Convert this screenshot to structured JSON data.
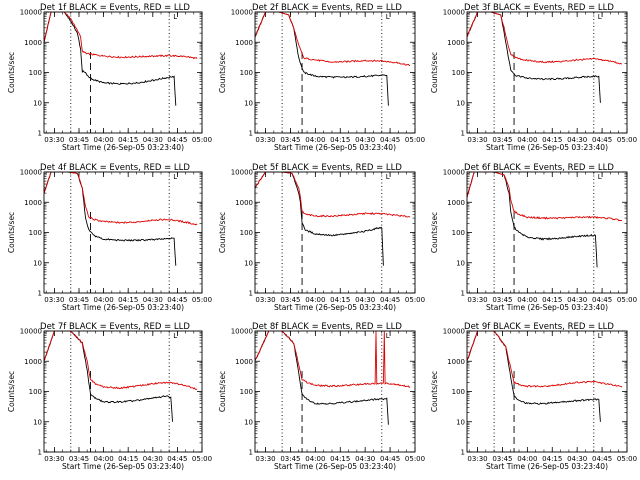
{
  "chart_data": [
    {
      "type": "line",
      "title": "Det 1f BLACK = Events, RED = LLD",
      "ylabel": "Counts/sec",
      "xlabel": "Start Time (26-Sep-05 03:23:40)",
      "yscale": "log",
      "ylim": [
        1,
        10000
      ],
      "xlim": [
        "03:23:40",
        "05:00:00"
      ],
      "x_ticks": [
        "03:30",
        "03:45",
        "04:00",
        "04:15",
        "04:30",
        "04:45",
        "05:00"
      ],
      "y_ticks": [
        "1",
        "10",
        "100",
        "1000",
        "10000"
      ],
      "marker_label": "L",
      "vlines": {
        "dotted": [
          "03:40",
          "04:40"
        ],
        "dashed": [
          "03:52"
        ]
      },
      "series": [
        {
          "color": "#000000",
          "x": [
            "03:23:40",
            "03:28:00",
            "03:36:00",
            "03:40:00",
            "03:44:00",
            "03:46:00",
            "03:47:00",
            "03:49:00",
            "03:50:00",
            "03:53:00",
            "04:00:00",
            "04:10:00",
            "04:20:00",
            "04:30:00",
            "04:40:00",
            "04:43:00",
            "04:44:00"
          ],
          "values": [
            1000,
            10000,
            10000,
            5000,
            2000,
            600,
            110,
            100,
            80,
            60,
            45,
            42,
            45,
            55,
            70,
            75,
            8
          ]
        },
        {
          "color": "#dd0000",
          "x": [
            "03:23:40",
            "03:28:00",
            "03:36:00",
            "03:40:00",
            "03:44:00",
            "03:46:00",
            "03:47:00",
            "03:50:00",
            "04:00:00",
            "04:10:00",
            "04:20:00",
            "04:30:00",
            "04:40:00",
            "04:50:00",
            "04:57:00"
          ],
          "values": [
            1000,
            10000,
            10000,
            6000,
            2500,
            1500,
            500,
            420,
            350,
            320,
            330,
            350,
            360,
            340,
            290
          ]
        }
      ]
    },
    {
      "type": "line",
      "title": "Det 2f BLACK = Events, RED = LLD",
      "ylabel": "Counts/sec",
      "xlabel": "Start Time (26-Sep-05 03:23:40)",
      "yscale": "log",
      "ylim": [
        1,
        10000
      ],
      "xlim": [
        "03:23:40",
        "05:00:00"
      ],
      "x_ticks": [
        "03:30",
        "03:45",
        "04:00",
        "04:15",
        "04:30",
        "04:45",
        "05:00"
      ],
      "y_ticks": [
        "1",
        "10",
        "100",
        "1000",
        "10000"
      ],
      "marker_label": "L",
      "vlines": {
        "dotted": [
          "03:40",
          "04:40"
        ],
        "dashed": [
          "03:52"
        ]
      },
      "series": [
        {
          "color": "#000000",
          "x": [
            "03:23:40",
            "03:30:00",
            "03:38:00",
            "03:44:00",
            "03:47:00",
            "03:50:00",
            "03:53:00",
            "04:00:00",
            "04:10:00",
            "04:20:00",
            "04:30:00",
            "04:40:00",
            "04:43:00",
            "04:44:00"
          ],
          "values": [
            1500,
            10000,
            10000,
            8000,
            3000,
            300,
            100,
            75,
            70,
            70,
            75,
            80,
            80,
            8
          ]
        },
        {
          "color": "#dd0000",
          "x": [
            "03:23:40",
            "03:30:00",
            "03:38:00",
            "03:44:00",
            "03:47:00",
            "03:50:00",
            "03:53:00",
            "04:00:00",
            "04:10:00",
            "04:20:00",
            "04:30:00",
            "04:40:00",
            "04:50:00",
            "04:57:00"
          ],
          "values": [
            1500,
            10000,
            10000,
            8000,
            3000,
            800,
            300,
            260,
            220,
            230,
            250,
            240,
            210,
            170
          ]
        }
      ]
    },
    {
      "type": "line",
      "title": "Det 3f BLACK = Events, RED = LLD",
      "ylabel": "Counts/sec",
      "xlabel": "Start Time (26-Sep-05 03:23:40)",
      "yscale": "log",
      "ylim": [
        1,
        10000
      ],
      "xlim": [
        "03:23:40",
        "05:00:00"
      ],
      "x_ticks": [
        "03:30",
        "03:45",
        "04:00",
        "04:15",
        "04:30",
        "04:45",
        "05:00"
      ],
      "y_ticks": [
        "1",
        "10",
        "100",
        "1000",
        "10000"
      ],
      "marker_label": "L",
      "vlines": {
        "dotted": [
          "03:40",
          "04:40"
        ],
        "dashed": [
          "03:52"
        ]
      },
      "series": [
        {
          "color": "#000000",
          "x": [
            "03:23:40",
            "03:30:00",
            "03:38:00",
            "03:44:00",
            "03:46:00",
            "03:48:00",
            "03:50:00",
            "03:53:00",
            "04:00:00",
            "04:10:00",
            "04:20:00",
            "04:30:00",
            "04:40:00",
            "04:43:00",
            "04:44:00"
          ],
          "values": [
            1500,
            10000,
            10000,
            8000,
            2000,
            500,
            120,
            80,
            65,
            60,
            62,
            68,
            75,
            75,
            10
          ]
        },
        {
          "color": "#dd0000",
          "x": [
            "03:23:40",
            "03:30:00",
            "03:38:00",
            "03:44:00",
            "03:46:00",
            "03:48:00",
            "03:50:00",
            "03:53:00",
            "04:00:00",
            "04:10:00",
            "04:20:00",
            "04:30:00",
            "04:40:00",
            "04:50:00",
            "04:57:00"
          ],
          "values": [
            1500,
            10000,
            10000,
            8000,
            3000,
            1000,
            400,
            300,
            250,
            220,
            230,
            260,
            280,
            240,
            190
          ]
        }
      ]
    },
    {
      "type": "line",
      "title": "Det 4f BLACK = Events, RED = LLD",
      "ylabel": "Counts/sec",
      "xlabel": "Start Time (26-Sep-05 03:23:40)",
      "yscale": "log",
      "ylim": [
        1,
        10000
      ],
      "xlim": [
        "03:23:40",
        "05:00:00"
      ],
      "x_ticks": [
        "03:30",
        "03:45",
        "04:00",
        "04:15",
        "04:30",
        "04:45",
        "05:00"
      ],
      "y_ticks": [
        "1",
        "10",
        "100",
        "1000",
        "10000"
      ],
      "marker_label": "L",
      "vlines": {
        "dotted": [
          "03:40",
          "04:40"
        ],
        "dashed": [
          "03:52"
        ]
      },
      "series": [
        {
          "color": "#000000",
          "x": [
            "03:23:40",
            "03:28:00",
            "03:38:00",
            "03:44:00",
            "03:47:00",
            "03:49:00",
            "03:51:00",
            "03:54:00",
            "04:00:00",
            "04:10:00",
            "04:20:00",
            "04:30:00",
            "04:40:00",
            "04:43:00",
            "04:44:00"
          ],
          "values": [
            2000,
            10000,
            10000,
            9000,
            3000,
            300,
            120,
            80,
            60,
            55,
            55,
            58,
            62,
            65,
            8
          ]
        },
        {
          "color": "#dd0000",
          "x": [
            "03:23:40",
            "03:28:00",
            "03:38:00",
            "03:44:00",
            "03:47:00",
            "03:49:00",
            "03:51:00",
            "03:54:00",
            "04:00:00",
            "04:10:00",
            "04:20:00",
            "04:30:00",
            "04:40:00",
            "04:50:00",
            "04:57:00"
          ],
          "values": [
            2000,
            10000,
            10000,
            9000,
            3000,
            700,
            330,
            270,
            230,
            210,
            220,
            260,
            270,
            220,
            180
          ]
        }
      ]
    },
    {
      "type": "line",
      "title": "Det 5f BLACK = Events, RED = LLD",
      "ylabel": "Counts/sec",
      "xlabel": "Start Time (26-Sep-05 03:23:40)",
      "yscale": "log",
      "ylim": [
        1,
        10000
      ],
      "xlim": [
        "03:23:40",
        "05:00:00"
      ],
      "x_ticks": [
        "03:30",
        "03:45",
        "04:00",
        "04:15",
        "04:30",
        "04:45",
        "05:00"
      ],
      "y_ticks": [
        "1",
        "10",
        "100",
        "1000",
        "10000"
      ],
      "marker_label": "L",
      "vlines": {
        "dotted": [
          "03:40",
          "04:40"
        ],
        "dashed": [
          "03:52"
        ]
      },
      "series": [
        {
          "color": "#000000",
          "x": [
            "03:23:40",
            "03:30:00",
            "03:40:00",
            "03:46:00",
            "03:50:00",
            "03:51:00",
            "03:52:00",
            "03:54:00",
            "04:00:00",
            "04:10:00",
            "04:20:00",
            "04:30:00",
            "04:38:00",
            "04:40:00",
            "04:41:00"
          ],
          "values": [
            3000,
            10000,
            10000,
            9000,
            2000,
            1000,
            200,
            120,
            90,
            80,
            90,
            110,
            140,
            140,
            8
          ]
        },
        {
          "color": "#dd0000",
          "x": [
            "03:23:40",
            "03:30:00",
            "03:40:00",
            "03:46:00",
            "03:50:00",
            "03:51:00",
            "03:52:00",
            "03:54:00",
            "04:00:00",
            "04:10:00",
            "04:20:00",
            "04:30:00",
            "04:40:00",
            "04:50:00",
            "04:57:00"
          ],
          "values": [
            3000,
            10000,
            10000,
            9000,
            3000,
            1500,
            500,
            400,
            350,
            350,
            380,
            420,
            420,
            360,
            330
          ]
        }
      ]
    },
    {
      "type": "line",
      "title": "Det 6f BLACK = Events, RED = LLD",
      "ylabel": "Counts/sec",
      "xlabel": "Start Time (26-Sep-05 03:23:40)",
      "yscale": "log",
      "ylim": [
        1,
        10000
      ],
      "xlim": [
        "03:23:40",
        "05:00:00"
      ],
      "x_ticks": [
        "03:30",
        "03:45",
        "04:00",
        "04:15",
        "04:30",
        "04:45",
        "05:00"
      ],
      "y_ticks": [
        "1",
        "10",
        "100",
        "1000",
        "10000"
      ],
      "marker_label": "L",
      "vlines": {
        "dotted": [
          "03:40",
          "04:40"
        ],
        "dashed": [
          "03:52"
        ]
      },
      "series": [
        {
          "color": "#000000",
          "x": [
            "03:23:40",
            "03:28:00",
            "03:40:00",
            "03:46:00",
            "03:49:00",
            "03:50:00",
            "03:52:00",
            "03:55:00",
            "04:00:00",
            "04:10:00",
            "04:20:00",
            "04:30:00",
            "04:38:00",
            "04:41:00",
            "04:42:00"
          ],
          "values": [
            1500,
            10000,
            10000,
            8000,
            2000,
            500,
            150,
            100,
            70,
            60,
            65,
            75,
            80,
            80,
            7
          ]
        },
        {
          "color": "#dd0000",
          "x": [
            "03:23:40",
            "03:28:00",
            "03:40:00",
            "03:46:00",
            "03:49:00",
            "03:50:00",
            "03:52:00",
            "03:55:00",
            "04:00:00",
            "04:10:00",
            "04:20:00",
            "04:30:00",
            "04:40:00",
            "04:50:00",
            "04:57:00"
          ],
          "values": [
            1500,
            10000,
            10000,
            8000,
            3000,
            1200,
            500,
            400,
            320,
            300,
            300,
            320,
            320,
            290,
            250
          ]
        }
      ]
    },
    {
      "type": "line",
      "title": "Det 7f BLACK = Events, RED = LLD",
      "ylabel": "Counts/sec",
      "xlabel": "Start Time (26-Sep-05 03:23:40)",
      "yscale": "log",
      "ylim": [
        1,
        10000
      ],
      "xlim": [
        "03:23:40",
        "05:00:00"
      ],
      "x_ticks": [
        "03:30",
        "03:45",
        "04:00",
        "04:15",
        "04:30",
        "04:45",
        "05:00"
      ],
      "y_ticks": [
        "1",
        "10",
        "100",
        "1000",
        "10000"
      ],
      "marker_label": "L",
      "vlines": {
        "dotted": [
          "03:40",
          "04:40"
        ],
        "dashed": [
          "03:52"
        ]
      },
      "series": [
        {
          "color": "#000000",
          "x": [
            "03:23:40",
            "03:30:00",
            "03:40:00",
            "03:47:00",
            "03:50:00",
            "03:52:00",
            "03:55:00",
            "04:00:00",
            "04:10:00",
            "04:20:00",
            "04:30:00",
            "04:38:00",
            "04:41:00",
            "04:42:00"
          ],
          "values": [
            1000,
            10000,
            10000,
            4000,
            500,
            80,
            60,
            45,
            45,
            50,
            60,
            70,
            65,
            10
          ]
        },
        {
          "color": "#dd0000",
          "x": [
            "03:23:40",
            "03:30:00",
            "03:40:00",
            "03:47:00",
            "03:50:00",
            "03:52:00",
            "03:55:00",
            "04:00:00",
            "04:10:00",
            "04:20:00",
            "04:30:00",
            "04:40:00",
            "04:50:00",
            "04:57:00"
          ],
          "values": [
            1000,
            10000,
            10000,
            4000,
            1000,
            250,
            180,
            140,
            130,
            150,
            180,
            200,
            160,
            120
          ]
        }
      ]
    },
    {
      "type": "line",
      "title": "Det 8f BLACK = Events, RED = LLD",
      "ylabel": "Counts/sec",
      "xlabel": "Start Time (26-Sep-05 03:23:40)",
      "yscale": "log",
      "ylim": [
        1,
        10000
      ],
      "xlim": [
        "03:23:40",
        "05:00:00"
      ],
      "x_ticks": [
        "03:30",
        "03:45",
        "04:00",
        "04:15",
        "04:30",
        "04:45",
        "05:00"
      ],
      "y_ticks": [
        "1",
        "10",
        "100",
        "1000",
        "10000"
      ],
      "marker_label": "L",
      "vlines": {
        "dotted": [
          "03:40",
          "04:40"
        ],
        "dashed": [
          "03:52"
        ]
      },
      "series": [
        {
          "color": "#000000",
          "x": [
            "03:23:40",
            "03:32:00",
            "03:40:00",
            "03:47:00",
            "03:50:00",
            "03:52:00",
            "03:55:00",
            "04:00:00",
            "04:10:00",
            "04:20:00",
            "04:30:00",
            "04:36:00",
            "04:40:00",
            "04:43:00",
            "04:44:00"
          ],
          "values": [
            1000,
            10000,
            10000,
            4000,
            400,
            80,
            55,
            40,
            40,
            45,
            50,
            55,
            55,
            60,
            8
          ]
        },
        {
          "color": "#dd0000",
          "x": [
            "03:23:40",
            "03:32:00",
            "03:40:00",
            "03:47:00",
            "03:50:00",
            "03:52:00",
            "03:55:00",
            "04:00:00",
            "04:10:00",
            "04:20:00",
            "04:30:00",
            "04:36:00",
            "04:36:30",
            "04:37:00",
            "04:40:00",
            "04:41:00",
            "04:41:30",
            "04:42:00",
            "04:50:00",
            "04:57:00"
          ],
          "values": [
            1000,
            10000,
            10000,
            4000,
            800,
            250,
            200,
            160,
            150,
            160,
            180,
            180,
            10000,
            180,
            190,
            190,
            10000,
            190,
            170,
            140
          ]
        }
      ]
    },
    {
      "type": "line",
      "title": "Det 9f BLACK = Events, RED = LLD",
      "ylabel": "Counts/sec",
      "xlabel": "Start Time (26-Sep-05 03:23:40)",
      "yscale": "log",
      "ylim": [
        1,
        10000
      ],
      "xlim": [
        "03:23:40",
        "05:00:00"
      ],
      "x_ticks": [
        "03:30",
        "03:45",
        "04:00",
        "04:15",
        "04:30",
        "04:45",
        "05:00"
      ],
      "y_ticks": [
        "1",
        "10",
        "100",
        "1000",
        "10000"
      ],
      "marker_label": "L",
      "vlines": {
        "dotted": [
          "03:40",
          "04:40"
        ],
        "dashed": [
          "03:52"
        ]
      },
      "series": [
        {
          "color": "#000000",
          "x": [
            "03:23:40",
            "03:30:00",
            "03:40:00",
            "03:47:00",
            "03:50:00",
            "03:52:00",
            "03:55:00",
            "04:00:00",
            "04:10:00",
            "04:20:00",
            "04:30:00",
            "04:40:00",
            "04:43:00",
            "04:44:00"
          ],
          "values": [
            1000,
            10000,
            10000,
            3000,
            300,
            70,
            50,
            40,
            40,
            45,
            50,
            55,
            55,
            10
          ]
        },
        {
          "color": "#dd0000",
          "x": [
            "03:23:40",
            "03:30:00",
            "03:40:00",
            "03:47:00",
            "03:50:00",
            "03:52:00",
            "03:55:00",
            "04:00:00",
            "04:10:00",
            "04:20:00",
            "04:30:00",
            "04:40:00",
            "04:50:00",
            "04:57:00"
          ],
          "values": [
            1000,
            10000,
            10000,
            3000,
            600,
            200,
            170,
            150,
            150,
            170,
            200,
            210,
            170,
            140
          ]
        }
      ]
    }
  ]
}
